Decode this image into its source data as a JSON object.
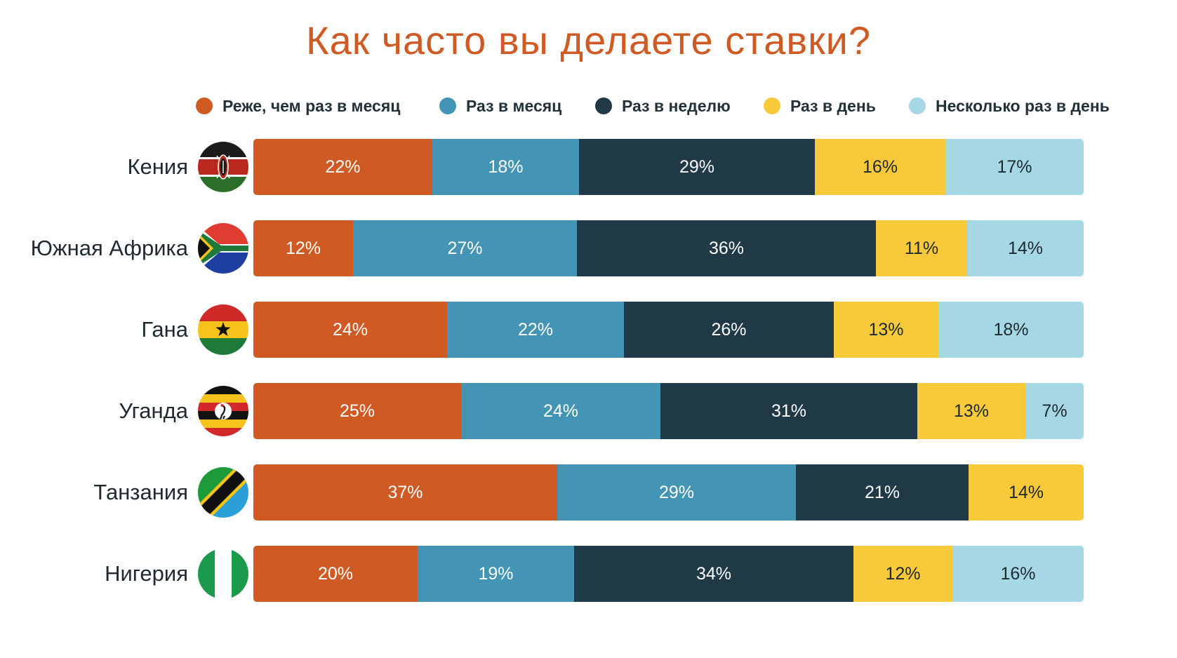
{
  "title": "Как часто вы делаете ставки?",
  "legend": [
    {
      "label": "Реже, чем раз в месяц",
      "color": "#d05a24"
    },
    {
      "label": "Раз в месяц",
      "color": "#4494b5"
    },
    {
      "label": "Раз в неделю",
      "color": "#1f3947"
    },
    {
      "label": "Раз в день",
      "color": "#f8c93a"
    },
    {
      "label": "Несколько раз в день",
      "color": "#a6d7e4"
    }
  ],
  "chart_data": {
    "type": "bar",
    "orientation": "horizontal",
    "stacked": true,
    "title": "Как часто вы делаете ставки?",
    "categories": [
      "Кения",
      "Южная Африка",
      "Гана",
      "Уганда",
      "Танзания",
      "Нигерия"
    ],
    "series": [
      {
        "name": "Реже, чем раз в месяц",
        "color": "#d05a24",
        "values": [
          22,
          12,
          24,
          25,
          37,
          20
        ],
        "labels": [
          "22%",
          "12%",
          "24%",
          "25%",
          "37%",
          "20%"
        ]
      },
      {
        "name": "Раз в месяц",
        "color": "#4494b5",
        "values": [
          18,
          27,
          22,
          24,
          29,
          19
        ],
        "labels": [
          "18%",
          "27%",
          "22%",
          "24%",
          "29%",
          "19%"
        ]
      },
      {
        "name": "Раз в неделю",
        "color": "#1f3947",
        "values": [
          29,
          36,
          26,
          31,
          21,
          34
        ],
        "labels": [
          "29%",
          "36%",
          "26%",
          "31%",
          "21%",
          "34%"
        ]
      },
      {
        "name": "Раз в день",
        "color": "#f8c93a",
        "values": [
          16,
          11,
          13,
          13,
          14,
          12
        ],
        "labels": [
          "16%",
          "11%",
          "13%",
          "13%",
          "14%",
          "12%"
        ]
      },
      {
        "name": "Несколько раз в день",
        "color": "#a6d7e4",
        "values": [
          17,
          14,
          18,
          7,
          0,
          16
        ],
        "labels": [
          "17%",
          "14%",
          "18%",
          "7%",
          "",
          "16%"
        ]
      }
    ],
    "xlim": [
      0,
      100
    ],
    "flags": [
      "kenya-flag-icon",
      "south-africa-flag-icon",
      "ghana-flag-icon",
      "uganda-flag-icon",
      "tanzania-flag-icon",
      "nigeria-flag-icon"
    ],
    "grid": false,
    "legend_position": "top"
  }
}
